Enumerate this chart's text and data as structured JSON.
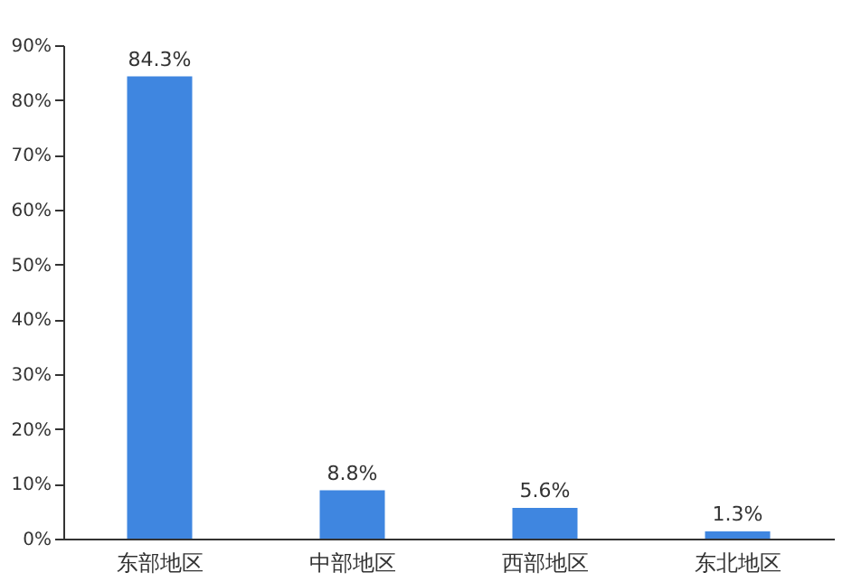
{
  "chart_data": {
    "type": "bar",
    "categories": [
      "东部地区",
      "中部地区",
      "西部地区",
      "东北地区"
    ],
    "values": [
      84.3,
      8.8,
      5.6,
      1.3
    ],
    "color": "#3f86e0",
    "ylim": [
      0,
      90
    ],
    "yticks": [
      {
        "value": 0,
        "label": "0%"
      },
      {
        "value": 10,
        "label": "10%"
      },
      {
        "value": 20,
        "label": "20%"
      },
      {
        "value": 30,
        "label": "30%"
      },
      {
        "value": 40,
        "label": "40%"
      },
      {
        "value": 50,
        "label": "50%"
      },
      {
        "value": 60,
        "label": "60%"
      },
      {
        "value": 70,
        "label": "70%"
      },
      {
        "value": 80,
        "label": "80%"
      },
      {
        "value": 90,
        "label": "90%"
      }
    ],
    "value_labels": [
      "84.3%",
      "8.8%",
      "5.6%",
      "1.3%"
    ],
    "grid": false
  }
}
